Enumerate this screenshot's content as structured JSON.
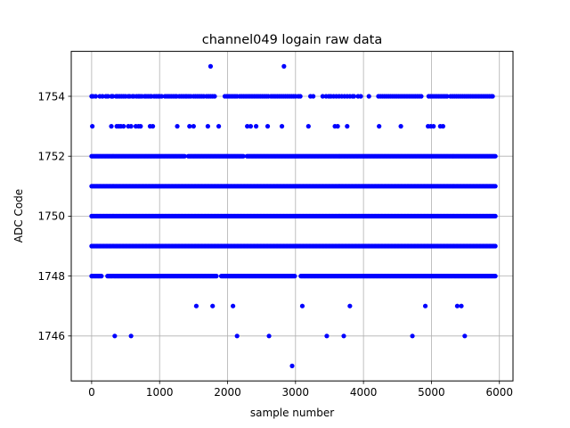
{
  "chart_data": {
    "type": "scatter",
    "title": "channel049 logain raw data",
    "xlabel": "sample number",
    "ylabel": "ADC Code",
    "xlim": [
      -300,
      6200
    ],
    "ylim": [
      1744.5,
      1755.5
    ],
    "xticks": [
      0,
      1000,
      2000,
      3000,
      4000,
      5000,
      6000
    ],
    "yticks": [
      1746,
      1748,
      1750,
      1752,
      1754
    ],
    "grid": true,
    "marker_color": "#0000ff",
    "dense_band_x_range": [
      0,
      5940
    ],
    "dense_levels": [
      {
        "y": 1748,
        "gaps": [
          [
            150,
            230
          ],
          [
            1850,
            1900
          ],
          [
            3000,
            3060
          ]
        ]
      },
      {
        "y": 1749,
        "gaps": []
      },
      {
        "y": 1750,
        "gaps": []
      },
      {
        "y": 1751,
        "gaps": []
      },
      {
        "y": 1752,
        "gaps": [
          [
            1380,
            1420
          ],
          [
            2240,
            2280
          ]
        ]
      }
    ],
    "series": [
      {
        "values": [
          [
            0,
            1754
          ],
          [
            20,
            1754
          ],
          [
            60,
            1754
          ],
          [
            120,
            1754
          ],
          [
            160,
            1754
          ],
          [
            210,
            1754
          ],
          [
            240,
            1754
          ],
          [
            290,
            1754
          ],
          [
            300,
            1754
          ],
          [
            310,
            1754
          ],
          [
            360,
            1754
          ],
          [
            380,
            1754
          ],
          [
            410,
            1754
          ],
          [
            440,
            1754
          ],
          [
            470,
            1754
          ],
          [
            500,
            1754
          ],
          [
            540,
            1754
          ],
          [
            560,
            1754
          ],
          [
            600,
            1754
          ],
          [
            620,
            1754
          ],
          [
            660,
            1754
          ],
          [
            690,
            1754
          ],
          [
            710,
            1754
          ],
          [
            740,
            1754
          ],
          [
            780,
            1754
          ],
          [
            800,
            1754
          ],
          [
            830,
            1754
          ],
          [
            860,
            1754
          ],
          [
            880,
            1754
          ],
          [
            920,
            1754
          ],
          [
            950,
            1754
          ],
          [
            980,
            1754
          ],
          [
            1000,
            1754
          ],
          [
            1030,
            1754
          ],
          [
            1080,
            1754
          ],
          [
            1110,
            1754
          ],
          [
            1140,
            1754
          ],
          [
            1170,
            1754
          ],
          [
            1200,
            1754
          ],
          [
            1230,
            1754
          ],
          [
            1250,
            1754
          ],
          [
            1290,
            1754
          ],
          [
            1320,
            1754
          ],
          [
            1350,
            1754
          ],
          [
            1380,
            1754
          ],
          [
            1400,
            1754
          ],
          [
            1430,
            1754
          ],
          [
            1460,
            1754
          ],
          [
            1500,
            1754
          ],
          [
            1530,
            1754
          ],
          [
            1560,
            1754
          ],
          [
            1590,
            1754
          ],
          [
            1620,
            1754
          ],
          [
            1650,
            1754
          ],
          [
            1690,
            1754
          ],
          [
            1720,
            1754
          ],
          [
            1750,
            1754
          ],
          [
            1780,
            1754
          ],
          [
            1810,
            1754
          ],
          [
            1960,
            1754
          ],
          [
            1990,
            1754
          ],
          [
            2020,
            1754
          ],
          [
            2050,
            1754
          ],
          [
            2080,
            1754
          ],
          [
            2110,
            1754
          ],
          [
            2140,
            1754
          ],
          [
            2180,
            1754
          ],
          [
            2210,
            1754
          ],
          [
            2240,
            1754
          ],
          [
            2270,
            1754
          ],
          [
            2300,
            1754
          ],
          [
            2330,
            1754
          ],
          [
            2360,
            1754
          ],
          [
            2390,
            1754
          ],
          [
            2420,
            1754
          ],
          [
            2450,
            1754
          ],
          [
            2480,
            1754
          ],
          [
            2510,
            1754
          ],
          [
            2540,
            1754
          ],
          [
            2570,
            1754
          ],
          [
            2600,
            1754
          ],
          [
            2640,
            1754
          ],
          [
            2670,
            1754
          ],
          [
            2700,
            1754
          ],
          [
            2730,
            1754
          ],
          [
            2760,
            1754
          ],
          [
            2790,
            1754
          ],
          [
            2820,
            1754
          ],
          [
            2850,
            1754
          ],
          [
            2880,
            1754
          ],
          [
            2910,
            1754
          ],
          [
            2940,
            1754
          ],
          [
            2970,
            1754
          ],
          [
            3000,
            1754
          ],
          [
            3040,
            1754
          ],
          [
            3070,
            1754
          ],
          [
            3220,
            1754
          ],
          [
            3260,
            1754
          ],
          [
            3400,
            1754
          ],
          [
            3450,
            1754
          ],
          [
            3490,
            1754
          ],
          [
            3520,
            1754
          ],
          [
            3560,
            1754
          ],
          [
            3600,
            1754
          ],
          [
            3640,
            1754
          ],
          [
            3680,
            1754
          ],
          [
            3720,
            1754
          ],
          [
            3760,
            1754
          ],
          [
            3800,
            1754
          ],
          [
            3840,
            1754
          ],
          [
            3860,
            1754
          ],
          [
            3920,
            1754
          ],
          [
            3960,
            1754
          ],
          [
            4080,
            1754
          ],
          [
            4220,
            1754
          ],
          [
            4250,
            1754
          ],
          [
            4280,
            1754
          ],
          [
            4310,
            1754
          ],
          [
            4340,
            1754
          ],
          [
            4370,
            1754
          ],
          [
            4400,
            1754
          ],
          [
            4430,
            1754
          ],
          [
            4460,
            1754
          ],
          [
            4490,
            1754
          ],
          [
            4520,
            1754
          ],
          [
            4550,
            1754
          ],
          [
            4580,
            1754
          ],
          [
            4610,
            1754
          ],
          [
            4640,
            1754
          ],
          [
            4670,
            1754
          ],
          [
            4700,
            1754
          ],
          [
            4730,
            1754
          ],
          [
            4760,
            1754
          ],
          [
            4790,
            1754
          ],
          [
            4820,
            1754
          ],
          [
            4850,
            1754
          ],
          [
            4960,
            1754
          ],
          [
            4990,
            1754
          ],
          [
            5020,
            1754
          ],
          [
            5050,
            1754
          ],
          [
            5080,
            1754
          ],
          [
            5110,
            1754
          ],
          [
            5140,
            1754
          ],
          [
            5170,
            1754
          ],
          [
            5200,
            1754
          ],
          [
            5230,
            1754
          ],
          [
            5280,
            1754
          ],
          [
            5310,
            1754
          ],
          [
            5340,
            1754
          ],
          [
            5370,
            1754
          ],
          [
            5400,
            1754
          ],
          [
            5430,
            1754
          ],
          [
            5460,
            1754
          ],
          [
            5490,
            1754
          ],
          [
            5520,
            1754
          ],
          [
            5550,
            1754
          ],
          [
            5580,
            1754
          ],
          [
            5610,
            1754
          ],
          [
            5640,
            1754
          ],
          [
            5670,
            1754
          ],
          [
            5700,
            1754
          ],
          [
            5730,
            1754
          ],
          [
            5760,
            1754
          ],
          [
            5790,
            1754
          ],
          [
            5820,
            1754
          ],
          [
            5850,
            1754
          ],
          [
            5880,
            1754
          ],
          [
            5900,
            1754
          ],
          [
            1750,
            1755
          ],
          [
            2830,
            1755
          ],
          [
            10,
            1753
          ],
          [
            290,
            1753
          ],
          [
            370,
            1753
          ],
          [
            400,
            1753
          ],
          [
            430,
            1753
          ],
          [
            470,
            1753
          ],
          [
            540,
            1753
          ],
          [
            580,
            1753
          ],
          [
            650,
            1753
          ],
          [
            690,
            1753
          ],
          [
            720,
            1753
          ],
          [
            860,
            1753
          ],
          [
            900,
            1753
          ],
          [
            1260,
            1753
          ],
          [
            1440,
            1753
          ],
          [
            1500,
            1753
          ],
          [
            1710,
            1753
          ],
          [
            1870,
            1753
          ],
          [
            2290,
            1753
          ],
          [
            2340,
            1753
          ],
          [
            2420,
            1753
          ],
          [
            2590,
            1753
          ],
          [
            2800,
            1753
          ],
          [
            3190,
            1753
          ],
          [
            3580,
            1753
          ],
          [
            3620,
            1753
          ],
          [
            3760,
            1753
          ],
          [
            4230,
            1753
          ],
          [
            4550,
            1753
          ],
          [
            4950,
            1753
          ],
          [
            4990,
            1753
          ],
          [
            5030,
            1753
          ],
          [
            5130,
            1753
          ],
          [
            5170,
            1753
          ],
          [
            1540,
            1747
          ],
          [
            1780,
            1747
          ],
          [
            2080,
            1747
          ],
          [
            3100,
            1747
          ],
          [
            3800,
            1747
          ],
          [
            4910,
            1747
          ],
          [
            5380,
            1747
          ],
          [
            5440,
            1747
          ],
          [
            340,
            1746
          ],
          [
            580,
            1746
          ],
          [
            2140,
            1746
          ],
          [
            2610,
            1746
          ],
          [
            3460,
            1746
          ],
          [
            3710,
            1746
          ],
          [
            4720,
            1746
          ],
          [
            5490,
            1746
          ],
          [
            2950,
            1745
          ]
        ]
      }
    ]
  }
}
